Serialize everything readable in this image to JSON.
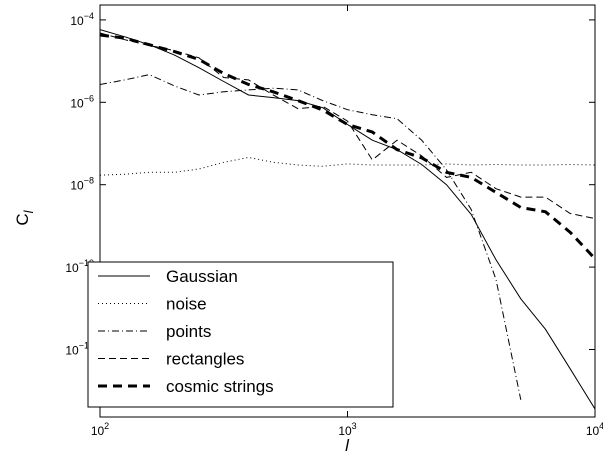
{
  "chart_data": {
    "type": "line",
    "xlabel": "l",
    "ylabel": "C",
    "ylabel_subscript": "l",
    "xscale": "log",
    "yscale": "log",
    "x": [
      100,
      126,
      158,
      200,
      251,
      316,
      398,
      501,
      631,
      794,
      1000,
      1259,
      1585,
      1995,
      2512,
      3162,
      3981,
      5012,
      6310,
      7943,
      10000
    ],
    "xlim": [
      100,
      10000
    ],
    "xticks": [
      {
        "value": 100,
        "label": "102"
      },
      {
        "value": 1000,
        "label": "103"
      },
      {
        "value": 10000,
        "label": "104"
      }
    ],
    "ylim": [
      2.3e-14,
      0.00023
    ],
    "yticks": [
      {
        "value": 1e-12,
        "label": "10−12"
      },
      {
        "value": 1e-10,
        "label": "10−10"
      },
      {
        "value": 1e-08,
        "label": "10−8"
      },
      {
        "value": 1e-06,
        "label": "10−6"
      },
      {
        "value": 0.0001,
        "label": "10−4"
      }
    ],
    "legend": "lower left",
    "series": [
      {
        "name": "Gaussian",
        "color": "#000000",
        "linestyle": "solid",
        "linewidth": 1,
        "values": [
          5.8e-05,
          3.9e-05,
          2.5e-05,
          1.4e-05,
          6.9e-06,
          3.2e-06,
          1.5e-06,
          1.3e-06,
          1.1e-06,
          7.4e-07,
          2.9e-07,
          1.2e-07,
          7.1e-08,
          3.1e-08,
          1e-08,
          1.9e-09,
          1.5e-10,
          1.7e-11,
          3.1e-12,
          3.4e-13,
          3.6e-14
        ]
      },
      {
        "name": "noise",
        "color": "#000000",
        "linestyle": "dotted",
        "linewidth": 1,
        "values": [
          1.7e-08,
          1.8e-08,
          2e-08,
          2e-08,
          2.4e-08,
          3.5e-08,
          4.6e-08,
          3.5e-08,
          3e-08,
          2.8e-08,
          3.2e-08,
          3e-08,
          3e-08,
          3e-08,
          3.2e-08,
          3e-08,
          3.1e-08,
          3e-08,
          3e-08,
          3.1e-08,
          3e-08
        ]
      },
      {
        "name": "points",
        "color": "#000000",
        "linestyle": "dashdot",
        "linewidth": 1,
        "values": [
          2.7e-06,
          3.5e-06,
          4.7e-06,
          2.5e-06,
          1.5e-06,
          1.8e-06,
          2e-06,
          2.2e-06,
          2e-06,
          1.1e-06,
          6.6e-07,
          5e-07,
          4e-07,
          1.2e-07,
          2.3e-08,
          2.5e-09,
          5e-11,
          6e-14,
          null,
          null,
          null
        ]
      },
      {
        "name": "rectangles",
        "color": "#000000",
        "linestyle": "dashed",
        "linewidth": 1,
        "values": [
          4.8e-05,
          3.3e-05,
          2.4e-05,
          1.8e-05,
          1.2e-05,
          4e-06,
          3.5e-06,
          1.5e-06,
          7e-07,
          8e-07,
          3.5e-07,
          4e-08,
          1.2e-07,
          5e-08,
          1.5e-08,
          2e-08,
          8e-09,
          5e-09,
          5e-09,
          2e-09,
          1.5e-09
        ]
      },
      {
        "name": "cosmic strings",
        "color": "#000000",
        "linestyle": "dashed",
        "linewidth": 3,
        "values": [
          4.3e-05,
          3.6e-05,
          2.5e-05,
          1.7e-05,
          1.1e-05,
          5e-06,
          2.7e-06,
          1.8e-06,
          1.1e-06,
          6.5e-07,
          2.9e-07,
          1.9e-07,
          7.1e-08,
          4.5e-08,
          2e-08,
          1.5e-08,
          6.5e-09,
          2.8e-09,
          2.2e-09,
          7e-10,
          1.6e-10
        ]
      }
    ]
  }
}
